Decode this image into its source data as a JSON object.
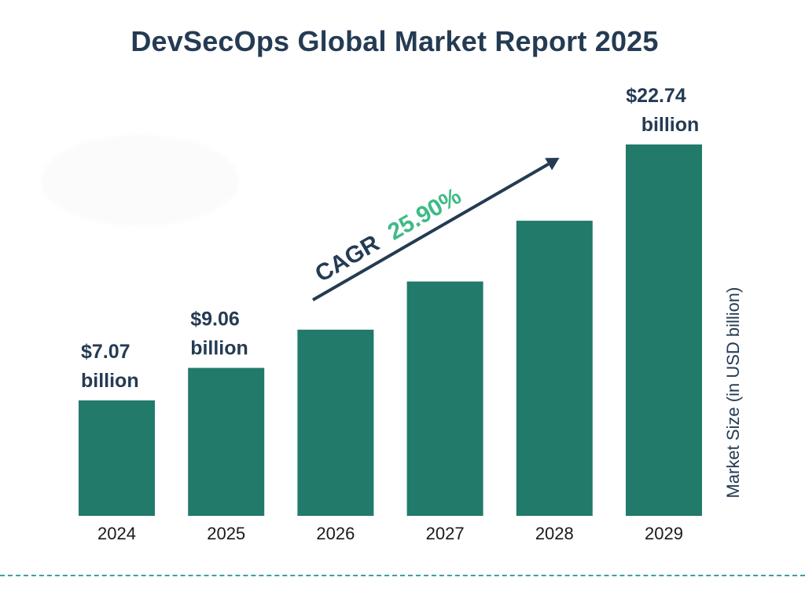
{
  "chart_data": {
    "type": "bar",
    "title": "DevSecOps Global Market Report 2025",
    "categories": [
      "2024",
      "2025",
      "2026",
      "2027",
      "2028",
      "2029"
    ],
    "values": [
      7.07,
      9.06,
      11.4,
      14.35,
      18.07,
      22.74
    ],
    "value_labels": [
      {
        "index": 0,
        "line1": "$7.07",
        "line2": "billion"
      },
      {
        "index": 1,
        "line1": "$9.06",
        "line2": "billion"
      },
      {
        "index": 5,
        "line1": "$22.74",
        "line2": "billion"
      }
    ],
    "ylabel": "Market Size (in USD billion)",
    "xlabel": "",
    "ylim": [
      0,
      22.74
    ],
    "grid": false,
    "annotation": {
      "prefix": "CAGR",
      "value": "25.90%"
    }
  },
  "colors": {
    "bar": "#217a6a",
    "title": "#243b53",
    "cagr_value": "#3dbb86",
    "arrow": "#243b53"
  }
}
